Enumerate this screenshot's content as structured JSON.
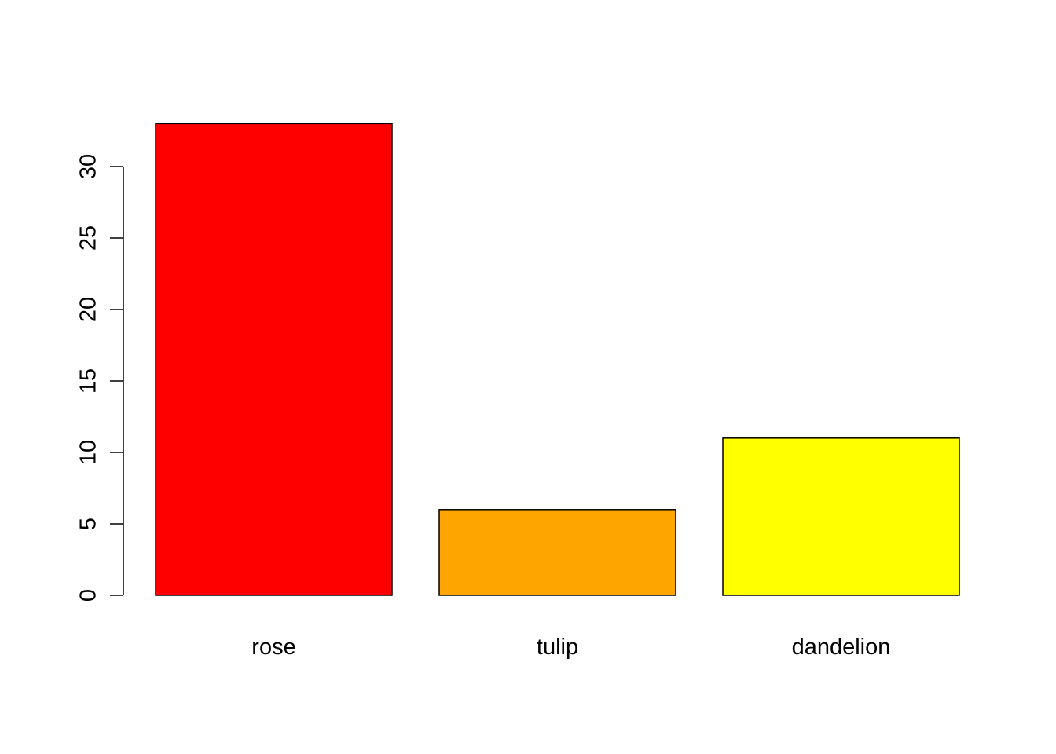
{
  "chart_data": {
    "type": "bar",
    "title": "",
    "xlabel": "",
    "ylabel": "",
    "categories": [
      "rose",
      "tulip",
      "dandelion"
    ],
    "values": [
      33,
      6,
      11
    ],
    "colors": [
      "#ff0000",
      "#ffa500",
      "#ffff00"
    ],
    "bar_border_color": "#000000",
    "ylim": [
      0,
      33
    ],
    "yticks": [
      0,
      5,
      10,
      15,
      20,
      25,
      30
    ],
    "ytick_labels": [
      "0",
      "5",
      "10",
      "15",
      "20",
      "25",
      "30"
    ],
    "grid": false,
    "legend": "none"
  }
}
